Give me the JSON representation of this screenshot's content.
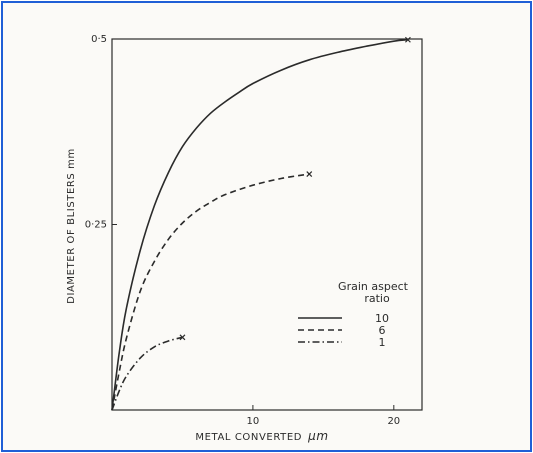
{
  "colors": {
    "frame_border": "#1f5fd6",
    "ink": "#2b2b2b",
    "paper": "#fbfaf7"
  },
  "chart_data": {
    "type": "line",
    "title": "",
    "xlabel": "METAL CONVERTED",
    "xlabel_unit": "μm",
    "ylabel": "DIAMETER OF BLISTERS mm",
    "xlim": [
      0,
      22
    ],
    "ylim": [
      0,
      0.5
    ],
    "x_ticks": [
      {
        "value": 10,
        "label": "10"
      },
      {
        "value": 20,
        "label": "20"
      }
    ],
    "y_ticks": [
      {
        "value": 0.25,
        "label": "0·25"
      },
      {
        "value": 0.5,
        "label": "0·5"
      }
    ],
    "grid": false,
    "legend": {
      "title_line1": "Grain aspect",
      "title_line2": "ratio",
      "placement": "lower-right"
    },
    "series": [
      {
        "name": "10",
        "dash": "solid",
        "end_marker": "x",
        "points": [
          [
            0,
            0
          ],
          [
            0.5,
            0.075
          ],
          [
            1,
            0.135
          ],
          [
            2,
            0.215
          ],
          [
            3,
            0.275
          ],
          [
            4,
            0.32
          ],
          [
            5,
            0.355
          ],
          [
            6,
            0.38
          ],
          [
            7,
            0.4
          ],
          [
            8,
            0.415
          ],
          [
            9,
            0.428
          ],
          [
            10,
            0.44
          ],
          [
            12,
            0.458
          ],
          [
            14,
            0.472
          ],
          [
            16,
            0.482
          ],
          [
            18,
            0.49
          ],
          [
            20,
            0.497
          ],
          [
            21,
            0.499
          ]
        ]
      },
      {
        "name": "6",
        "dash": "dashed",
        "end_marker": "x",
        "points": [
          [
            0,
            0
          ],
          [
            0.5,
            0.05
          ],
          [
            1,
            0.095
          ],
          [
            2,
            0.16
          ],
          [
            3,
            0.2
          ],
          [
            4,
            0.23
          ],
          [
            5,
            0.252
          ],
          [
            6,
            0.268
          ],
          [
            7,
            0.28
          ],
          [
            8,
            0.29
          ],
          [
            10,
            0.303
          ],
          [
            12,
            0.312
          ],
          [
            14,
            0.318
          ]
        ]
      },
      {
        "name": "1",
        "dash": "dash-dot",
        "end_marker": "x",
        "points": [
          [
            0,
            0
          ],
          [
            0.5,
            0.025
          ],
          [
            1,
            0.045
          ],
          [
            2,
            0.07
          ],
          [
            3,
            0.085
          ],
          [
            4,
            0.093
          ],
          [
            5,
            0.098
          ]
        ]
      }
    ]
  }
}
